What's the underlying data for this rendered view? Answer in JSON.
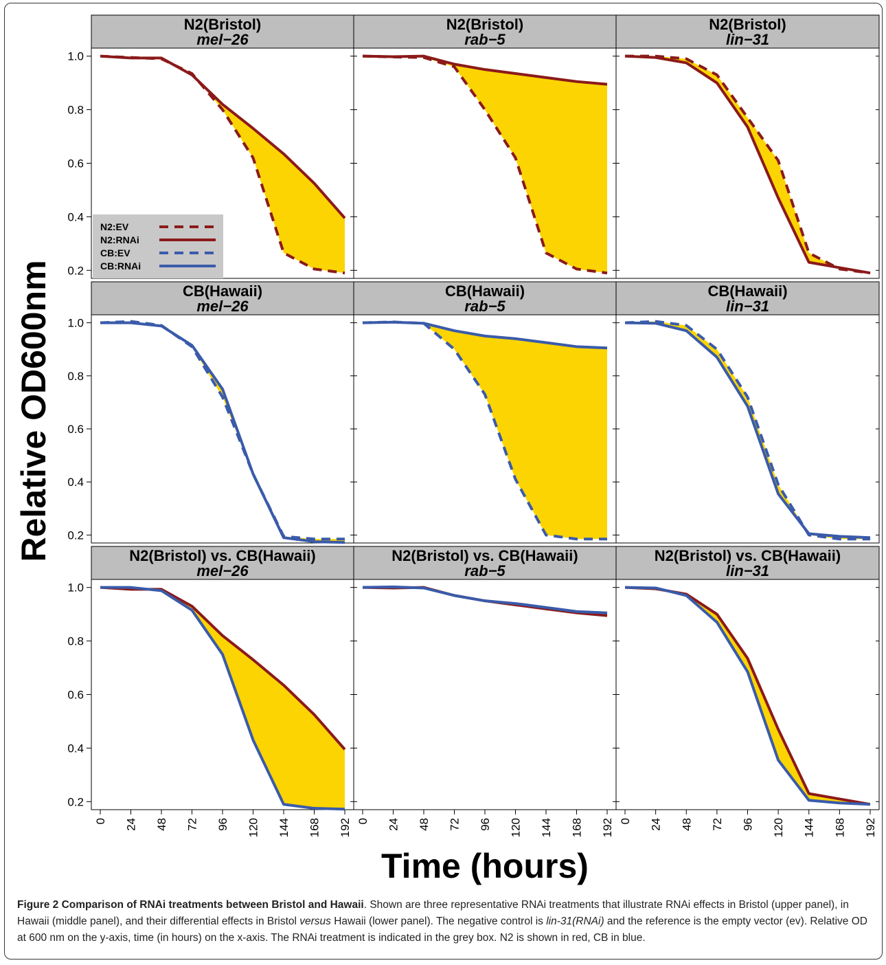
{
  "figure": {
    "ylabel": "Relative OD600nm",
    "xlabel": "Time (hours)"
  },
  "caption": {
    "title": "Figure 2 Comparison of RNAi treatments between Bristol and Hawaii",
    "text_1": ". Shown are three representative RNAi treatments that illustrate RNAi effects in Bristol (upper panel), in Hawaii (middle panel), and their differential effects in Bristol ",
    "text_versus": "versus",
    "text_2": " Hawaii (lower panel). The negative control is ",
    "text_lin31": "lin-31(RNAi)",
    "text_3": " and the reference is the empty vector (ev). Relative OD at 600 nm on the y-axis, time (in hours) on the x-axis. The RNAi treatment is indicated in the grey box. N2 is shown in red, CB in blue."
  },
  "colors": {
    "n2": "#8B1A1A",
    "cb": "#3A5BAA",
    "fill": "#FBD402",
    "strip": "#BEBEBE"
  },
  "chart_data": {
    "type": "line",
    "x": [
      0,
      24,
      48,
      72,
      96,
      120,
      144,
      168,
      192
    ],
    "x_ticks": [
      "0",
      "24",
      "48",
      "72",
      "96",
      "120",
      "144",
      "168",
      "192"
    ],
    "y_ticks": [
      "0.2",
      "0.4",
      "0.6",
      "0.8",
      "1.0"
    ],
    "ylim": [
      0.17,
      1.03
    ],
    "legend": {
      "placement": "bottom-left of top-left panel",
      "entries": [
        "N2:EV",
        "N2:RNAi",
        "CB:EV",
        "CB:RNAi"
      ]
    },
    "panels": [
      {
        "strip_line1": "N2(Bristol)",
        "strip_line2": "mel−26",
        "series": [
          {
            "name": "N2:EV",
            "values": [
              1.0,
              0.995,
              0.99,
              0.935,
              0.8,
              0.62,
              0.265,
              0.205,
              0.19
            ]
          },
          {
            "name": "N2:RNAi",
            "values": [
              1.0,
              0.993,
              0.993,
              0.93,
              0.82,
              0.73,
              0.635,
              0.525,
              0.395
            ]
          }
        ]
      },
      {
        "strip_line1": "N2(Bristol)",
        "strip_line2": "rab−5",
        "series": [
          {
            "name": "N2:EV",
            "values": [
              1.0,
              0.997,
              0.995,
              0.96,
              0.8,
              0.62,
              0.265,
              0.205,
              0.19
            ]
          },
          {
            "name": "N2:RNAi",
            "values": [
              1.0,
              0.998,
              1.0,
              0.97,
              0.95,
              0.935,
              0.92,
              0.905,
              0.895
            ]
          }
        ]
      },
      {
        "strip_line1": "N2(Bristol)",
        "strip_line2": "lin−31",
        "series": [
          {
            "name": "N2:EV",
            "values": [
              1.0,
              1.0,
              0.99,
              0.93,
              0.77,
              0.61,
              0.265,
              0.205,
              0.19
            ]
          },
          {
            "name": "N2:RNAi",
            "values": [
              1.0,
              0.995,
              0.975,
              0.9,
              0.735,
              0.47,
              0.23,
              0.21,
              0.19
            ]
          }
        ]
      },
      {
        "strip_line1": "CB(Hawaii)",
        "strip_line2": "mel−26",
        "series": [
          {
            "name": "CB:EV",
            "values": [
              1.0,
              1.005,
              0.99,
              0.91,
              0.72,
              0.43,
              0.195,
              0.185,
              0.185
            ]
          },
          {
            "name": "CB:RNAi",
            "values": [
              1.0,
              1.0,
              0.988,
              0.915,
              0.75,
              0.43,
              0.19,
              0.175,
              0.172
            ]
          }
        ]
      },
      {
        "strip_line1": "CB(Hawaii)",
        "strip_line2": "rab−5",
        "series": [
          {
            "name": "CB:EV",
            "values": [
              1.0,
              1.003,
              0.998,
              0.9,
              0.73,
              0.41,
              0.2,
              0.185,
              0.185
            ]
          },
          {
            "name": "CB:RNAi",
            "values": [
              1.0,
              1.002,
              0.998,
              0.97,
              0.95,
              0.94,
              0.925,
              0.91,
              0.905
            ]
          }
        ]
      },
      {
        "strip_line1": "CB(Hawaii)",
        "strip_line2": "lin−31",
        "series": [
          {
            "name": "CB:EV",
            "values": [
              1.0,
              1.005,
              0.99,
              0.9,
              0.72,
              0.39,
              0.2,
              0.185,
              0.185
            ]
          },
          {
            "name": "CB:RNAi",
            "values": [
              1.0,
              0.998,
              0.97,
              0.87,
              0.685,
              0.355,
              0.205,
              0.195,
              0.19
            ]
          }
        ]
      },
      {
        "strip_line1": "N2(Bristol) vs. CB(Hawaii)",
        "strip_line2": "mel−26",
        "series": [
          {
            "name": "N2:RNAi",
            "values": [
              1.0,
              0.993,
              0.993,
              0.93,
              0.82,
              0.73,
              0.635,
              0.525,
              0.395
            ]
          },
          {
            "name": "CB:RNAi",
            "values": [
              1.0,
              1.0,
              0.988,
              0.915,
              0.75,
              0.43,
              0.19,
              0.175,
              0.172
            ]
          }
        ]
      },
      {
        "strip_line1": "N2(Bristol) vs. CB(Hawaii)",
        "strip_line2": "rab−5",
        "series": [
          {
            "name": "N2:RNAi",
            "values": [
              1.0,
              0.998,
              1.0,
              0.97,
              0.95,
              0.935,
              0.92,
              0.905,
              0.895
            ]
          },
          {
            "name": "CB:RNAi",
            "values": [
              1.0,
              1.002,
              0.998,
              0.97,
              0.95,
              0.94,
              0.925,
              0.91,
              0.905
            ]
          }
        ]
      },
      {
        "strip_line1": "N2(Bristol) vs. CB(Hawaii)",
        "strip_line2": "lin−31",
        "series": [
          {
            "name": "N2:RNAi",
            "values": [
              1.0,
              0.995,
              0.975,
              0.9,
              0.735,
              0.47,
              0.23,
              0.21,
              0.19
            ]
          },
          {
            "name": "CB:RNAi",
            "values": [
              1.0,
              0.998,
              0.97,
              0.87,
              0.685,
              0.355,
              0.205,
              0.195,
              0.19
            ]
          }
        ]
      }
    ]
  }
}
